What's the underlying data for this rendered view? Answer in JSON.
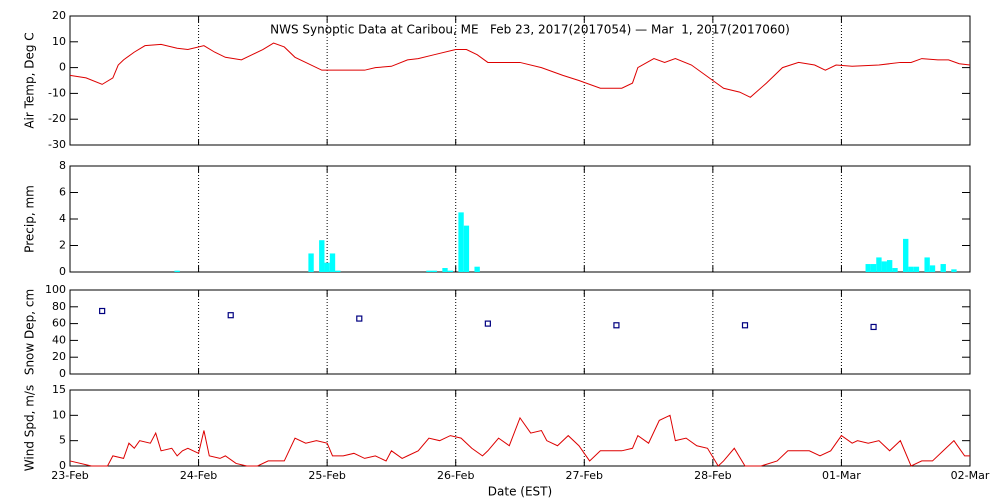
{
  "chart_data": [
    {
      "type": "line",
      "title": "NWS Synoptic Data at Caribou, ME   Feb 23, 2017(2017054) — Mar  1, 2017(2017060)",
      "y_label": "Air Temp, Deg C",
      "color": "#dd0000",
      "grid": true,
      "xlim": [
        0,
        168
      ],
      "xticks": [
        0,
        24,
        48,
        72,
        96,
        120,
        144,
        168
      ],
      "ylim": [
        -30,
        20
      ],
      "yticks": [
        -30,
        -20,
        -10,
        0,
        10,
        20
      ],
      "x": [
        0,
        3,
        6,
        8,
        9,
        10,
        12,
        14,
        17,
        20,
        22,
        25,
        27,
        29,
        32,
        34,
        36,
        38,
        40,
        42,
        44,
        47,
        50,
        55,
        57,
        60,
        63,
        65,
        68,
        72,
        74,
        76,
        78,
        84,
        88,
        92,
        95,
        99,
        103,
        105,
        106,
        109,
        111,
        113,
        116,
        120,
        122,
        125,
        127,
        130,
        133,
        136,
        139,
        141,
        143,
        146,
        151,
        155,
        157,
        159,
        162,
        164,
        166,
        168
      ],
      "values": [
        -3,
        -4,
        -6.5,
        -4,
        1,
        3,
        6,
        8.5,
        9,
        7.5,
        7,
        8.5,
        6,
        4,
        3,
        5,
        7,
        9.5,
        8,
        4,
        2,
        -1,
        -1,
        -1,
        0,
        0.5,
        3,
        3.5,
        5,
        7,
        7,
        5,
        2,
        2,
        0,
        -3,
        -5,
        -8,
        -8,
        -6,
        0,
        3.5,
        2,
        3.5,
        1,
        -5,
        -8,
        -9.5,
        -11.5,
        -6,
        0,
        2,
        1,
        -1,
        1,
        0.5,
        1,
        2,
        2,
        3.5,
        3,
        3,
        1.5,
        1
      ]
    },
    {
      "type": "bar",
      "y_label": "Precip, mm",
      "color": "#00ffff",
      "grid": true,
      "xlim": [
        0,
        168
      ],
      "xticks": [
        0,
        24,
        48,
        72,
        96,
        120,
        144,
        168
      ],
      "ylim": [
        0,
        8
      ],
      "yticks": [
        0,
        2,
        4,
        6,
        8
      ],
      "x": [
        20,
        45,
        47,
        48,
        49,
        50,
        67,
        68,
        70,
        71,
        73,
        74,
        76,
        149,
        150,
        151,
        152,
        153,
        154,
        156,
        157,
        158,
        160,
        161,
        163,
        165
      ],
      "values": [
        0.1,
        1.4,
        2.4,
        0.7,
        1.4,
        0.1,
        0.1,
        0.1,
        0.3,
        0.1,
        4.5,
        3.5,
        0.4,
        0.6,
        0.6,
        1.1,
        0.8,
        0.9,
        0.3,
        2.5,
        0.4,
        0.4,
        1.1,
        0.5,
        0.6,
        0.2
      ]
    },
    {
      "type": "scatter",
      "y_label": "Snow Dep, cm",
      "color": "#000080",
      "grid": true,
      "xlim": [
        0,
        168
      ],
      "xticks": [
        0,
        24,
        48,
        72,
        96,
        120,
        144,
        168
      ],
      "ylim": [
        0,
        100
      ],
      "yticks": [
        0,
        20,
        40,
        60,
        80,
        100
      ],
      "x": [
        6,
        30,
        54,
        78,
        102,
        126,
        150
      ],
      "values": [
        75,
        70,
        66,
        60,
        58,
        58,
        56
      ]
    },
    {
      "type": "line",
      "y_label": "Wind Spd, m/s",
      "x_label": "Date (EST)",
      "color": "#dd0000",
      "grid": true,
      "xlim": [
        0,
        168
      ],
      "xticks": [
        {
          "value": 0,
          "label": "23-Feb"
        },
        {
          "value": 24,
          "label": "24-Feb"
        },
        {
          "value": 48,
          "label": "25-Feb"
        },
        {
          "value": 72,
          "label": "26-Feb"
        },
        {
          "value": 96,
          "label": "27-Feb"
        },
        {
          "value": 120,
          "label": "28-Feb"
        },
        {
          "value": 144,
          "label": "01-Mar"
        },
        {
          "value": 168,
          "label": "02-Mar"
        }
      ],
      "ylim": [
        0,
        15
      ],
      "yticks": [
        0,
        5,
        10,
        15
      ],
      "x": [
        0,
        4,
        7,
        8,
        10,
        11,
        12,
        13,
        15,
        16,
        17,
        19,
        20,
        21,
        22,
        24,
        25,
        26,
        28,
        29,
        31,
        33,
        35,
        37,
        40,
        42,
        44,
        46,
        48,
        49,
        51,
        53,
        55,
        57,
        59,
        60,
        62,
        63,
        65,
        67,
        69,
        71,
        73,
        75,
        77,
        78,
        80,
        82,
        84,
        86,
        88,
        89,
        91,
        93,
        95,
        97,
        99,
        101,
        103,
        105,
        106,
        108,
        110,
        112,
        113,
        115,
        117,
        119,
        121,
        122,
        124,
        126,
        129,
        132,
        134,
        138,
        140,
        142,
        144,
        146,
        147,
        149,
        151,
        153,
        155,
        157,
        159,
        161,
        163,
        165,
        167,
        168
      ],
      "values": [
        1,
        0,
        0,
        2,
        1.5,
        4.5,
        3.5,
        5,
        4.5,
        6.5,
        3,
        3.5,
        2,
        3,
        3.5,
        2.5,
        7,
        2,
        1.5,
        2,
        0.5,
        0,
        0,
        1,
        1,
        5.5,
        4.5,
        5,
        4.5,
        2,
        2,
        2.5,
        1.5,
        2,
        1,
        3,
        1.5,
        2,
        3,
        5.5,
        5,
        6,
        5.5,
        3.5,
        2,
        3,
        5.5,
        4,
        9.5,
        6.5,
        7,
        5,
        4,
        6,
        4,
        1,
        3,
        3,
        3,
        3.5,
        6,
        4.5,
        9,
        10,
        5,
        5.5,
        4,
        3.5,
        0,
        1,
        3.5,
        0,
        0,
        1,
        3,
        3,
        2,
        3,
        6,
        4.5,
        5,
        4.5,
        5,
        3,
        5,
        0,
        1,
        1,
        3,
        5,
        2,
        2
      ]
    }
  ]
}
